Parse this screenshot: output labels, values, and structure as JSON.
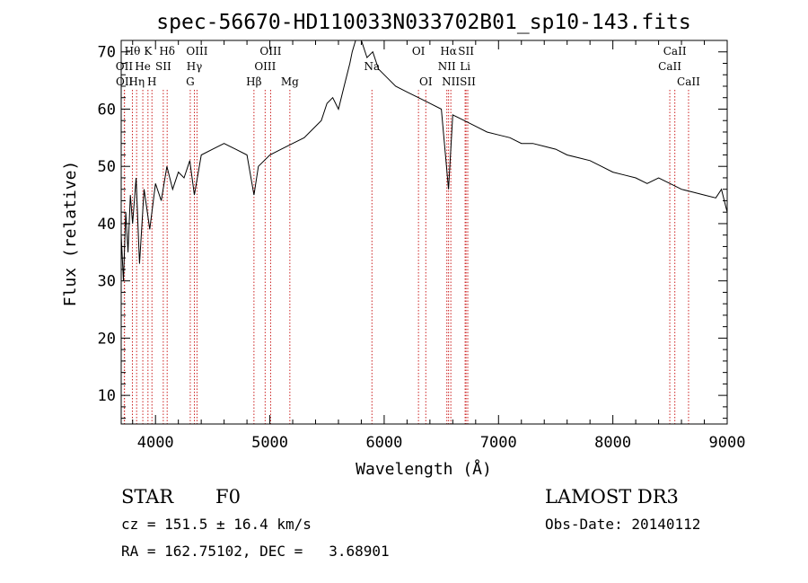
{
  "chart_data": {
    "type": "line",
    "title": "spec-56670-HD110033N033702B01_sp10-143.fits",
    "xlabel": "Wavelength (Å)",
    "ylabel": "Flux (relative)",
    "xlim": [
      3700,
      9000
    ],
    "ylim": [
      5,
      72
    ],
    "x_ticks": [
      4000,
      5000,
      6000,
      7000,
      8000,
      9000
    ],
    "y_ticks": [
      10,
      20,
      30,
      40,
      50,
      60,
      70
    ],
    "series": [
      {
        "name": "spectrum",
        "x": [
          3700,
          3720,
          3740,
          3760,
          3780,
          3800,
          3830,
          3860,
          3900,
          3950,
          4000,
          4050,
          4100,
          4150,
          4200,
          4250,
          4300,
          4340,
          4400,
          4500,
          4600,
          4700,
          4800,
          4861,
          4900,
          5000,
          5100,
          5200,
          5300,
          5400,
          5450,
          5500,
          5550,
          5600,
          5650,
          5700,
          5720,
          5750,
          5800,
          5850,
          5900,
          5950,
          6000,
          6100,
          6200,
          6300,
          6400,
          6500,
          6563,
          6600,
          6700,
          6800,
          6900,
          7000,
          7100,
          7200,
          7300,
          7400,
          7500,
          7600,
          7700,
          7800,
          7900,
          8000,
          8100,
          8200,
          8300,
          8400,
          8500,
          8600,
          8700,
          8800,
          8900,
          8950,
          9000
        ],
        "y": [
          38,
          30,
          42,
          35,
          45,
          40,
          48,
          33,
          46,
          39,
          47,
          44,
          50,
          46,
          49,
          48,
          51,
          45,
          52,
          53,
          54,
          53,
          52,
          45,
          50,
          52,
          53,
          54,
          55,
          57,
          58,
          61,
          62,
          60,
          64,
          68,
          70,
          72,
          72,
          69,
          70,
          67,
          66,
          64,
          63,
          62,
          61,
          60,
          46,
          59,
          58,
          57,
          56,
          55.5,
          55,
          54,
          54,
          53.5,
          53,
          52,
          51.5,
          51,
          50,
          49,
          48.5,
          48,
          47,
          48,
          47,
          46,
          45.5,
          45,
          44.5,
          46,
          42
        ]
      }
    ],
    "lines": [
      {
        "label": "Hθ",
        "x": 3798,
        "row": 1
      },
      {
        "label": "OII",
        "x": 3727,
        "row": 2
      },
      {
        "label": "OII",
        "x": 3729,
        "row": 3
      },
      {
        "label": "Hη",
        "x": 3835,
        "row": 3
      },
      {
        "label": "He",
        "x": 3889,
        "row": 2
      },
      {
        "label": "K",
        "x": 3934,
        "row": 1
      },
      {
        "label": "H",
        "x": 3969,
        "row": 3
      },
      {
        "label": "SII",
        "x": 4068,
        "row": 2
      },
      {
        "label": "Hδ",
        "x": 4102,
        "row": 1
      },
      {
        "label": "OIII",
        "x": 4363,
        "row": 1
      },
      {
        "label": "Hγ",
        "x": 4340,
        "row": 2
      },
      {
        "label": "G",
        "x": 4304,
        "row": 3
      },
      {
        "label": "Hβ",
        "x": 4861,
        "row": 3
      },
      {
        "label": "OIII",
        "x": 5007,
        "row": 1
      },
      {
        "label": "OIII",
        "x": 4959,
        "row": 2
      },
      {
        "label": "Mg",
        "x": 5175,
        "row": 3
      },
      {
        "label": "Na",
        "x": 5893,
        "row": 2
      },
      {
        "label": "OI",
        "x": 6300,
        "row": 1
      },
      {
        "label": "OI",
        "x": 6364,
        "row": 3
      },
      {
        "label": "Hα",
        "x": 6563,
        "row": 1
      },
      {
        "label": "NII",
        "x": 6548,
        "row": 2
      },
      {
        "label": "NII",
        "x": 6583,
        "row": 3
      },
      {
        "label": "SII",
        "x": 6716,
        "row": 1
      },
      {
        "label": "Li",
        "x": 6708,
        "row": 2
      },
      {
        "label": "SII",
        "x": 6731,
        "row": 3
      },
      {
        "label": "CaII",
        "x": 8542,
        "row": 1
      },
      {
        "label": "CaII",
        "x": 8498,
        "row": 2
      },
      {
        "label": "CaII",
        "x": 8662,
        "row": 3
      }
    ]
  },
  "info": {
    "object_class": "STAR",
    "subclass": "F0",
    "survey": "LAMOST DR3",
    "cz": "cz = 151.5 ± 16.4 km/s",
    "obs_date": "Obs-Date: 20140112",
    "coords": "RA = 162.75102, DEC =   3.68901"
  },
  "colors": {
    "line_marker": "#cc2222",
    "spectrum": "#000000"
  }
}
